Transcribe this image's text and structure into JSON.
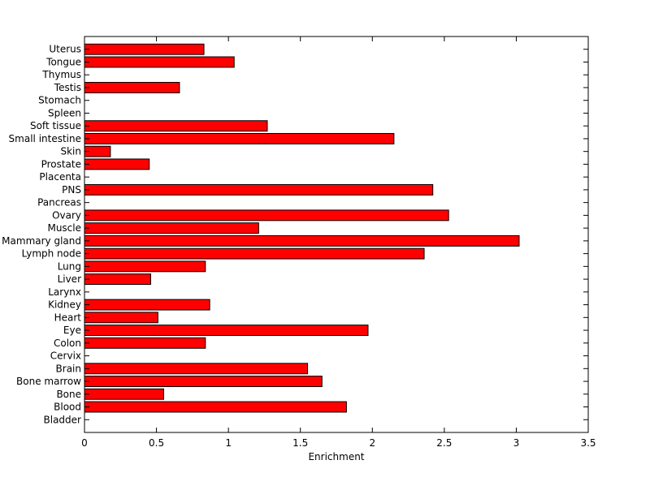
{
  "chart_data": {
    "type": "bar",
    "orientation": "horizontal",
    "xlabel": "Enrichment",
    "ylabel": "",
    "title": "",
    "xlim": [
      0,
      3.5
    ],
    "xticks": [
      "0",
      "0.5",
      "1",
      "1.5",
      "2",
      "2.5",
      "3",
      "3.5"
    ],
    "grid": false,
    "bar_color": "#ff0000",
    "categories": [
      "Bladder",
      "Blood",
      "Bone",
      "Bone marrow",
      "Brain",
      "Cervix",
      "Colon",
      "Eye",
      "Heart",
      "Kidney",
      "Larynx",
      "Liver",
      "Lung",
      "Lymph node",
      "Mammary gland",
      "Muscle",
      "Ovary",
      "Pancreas",
      "PNS",
      "Placenta",
      "Prostate",
      "Skin",
      "Small intestine",
      "Soft tissue",
      "Spleen",
      "Stomach",
      "Testis",
      "Thymus",
      "Tongue",
      "Uterus"
    ],
    "values": [
      0,
      1.82,
      0.55,
      1.65,
      1.55,
      0,
      0.84,
      1.97,
      0.51,
      0.87,
      0,
      0.46,
      0.84,
      2.36,
      3.02,
      1.21,
      2.53,
      0,
      2.42,
      0,
      0.45,
      0.18,
      2.15,
      1.27,
      0,
      0,
      0.66,
      0,
      1.04,
      0.83
    ]
  }
}
